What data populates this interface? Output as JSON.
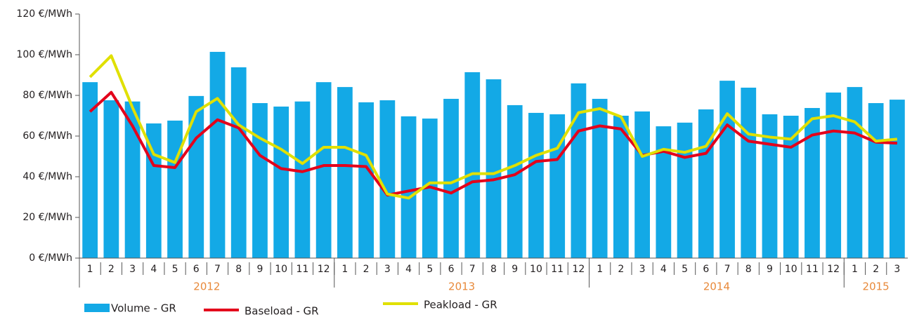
{
  "chart_data": {
    "type": "bar-line",
    "categories": [
      "1",
      "2",
      "3",
      "4",
      "5",
      "6",
      "7",
      "8",
      "9",
      "10",
      "11",
      "12",
      "1",
      "2",
      "3",
      "4",
      "5",
      "6",
      "7",
      "8",
      "9",
      "10",
      "11",
      "12",
      "1",
      "2",
      "3",
      "4",
      "5",
      "6",
      "7",
      "8",
      "9",
      "10",
      "11",
      "12",
      "1",
      "2",
      "3"
    ],
    "years": [
      "2012",
      "2013",
      "2014",
      "2015"
    ],
    "series": [
      {
        "name": "Volume - GR",
        "color": "#13a9e6",
        "kind": "bar",
        "values": [
          86.5,
          77.6,
          77,
          66.2,
          67.6,
          79.7,
          101.4,
          93.8,
          76.2,
          74.5,
          77,
          86.5,
          84.1,
          76.6,
          77.6,
          69.7,
          68.6,
          78.3,
          91.4,
          87.9,
          75.2,
          71.4,
          70.7,
          85.9,
          78.3,
          70,
          72.1,
          64.8,
          66.6,
          73.1,
          87.2,
          83.8,
          70.7,
          70,
          73.8,
          81.4,
          84.1,
          76.2,
          77.9
        ]
      },
      {
        "name": "Baseload - GR",
        "color": "#e3001b",
        "kind": "line",
        "values": [
          72,
          81.5,
          65,
          45.5,
          44.5,
          59,
          68,
          64,
          50.5,
          44,
          42.5,
          45.5,
          45.5,
          45,
          31,
          33,
          35,
          32,
          37.5,
          38.5,
          41,
          47.5,
          48.5,
          62.5,
          65,
          63.5,
          50.5,
          52.5,
          49.5,
          51.5,
          65.5,
          57.5,
          56,
          54.5,
          60.5,
          62.5,
          61.5,
          57,
          56.5
        ]
      },
      {
        "name": "Peakload - GR",
        "color": "#e0e000",
        "kind": "line",
        "values": [
          89,
          99.5,
          74,
          51,
          47,
          72,
          78.5,
          65.5,
          59,
          53.5,
          46.5,
          54.5,
          54.5,
          50.5,
          31.5,
          29.5,
          37,
          37,
          41.5,
          41.5,
          45.5,
          50.5,
          54,
          71.5,
          73.5,
          69.5,
          50,
          53.5,
          52,
          55,
          71,
          61,
          59.5,
          58.5,
          68.5,
          70,
          67,
          57.5,
          58.5
        ]
      }
    ],
    "ylim": [
      0,
      120
    ],
    "yticks": [
      {
        "value": 0,
        "label": "0 €/MWh"
      },
      {
        "value": 20,
        "label": "20 €/MWh"
      },
      {
        "value": 40,
        "label": "40 €/MWh"
      },
      {
        "value": 60,
        "label": "60 €/MWh"
      },
      {
        "value": 80,
        "label": "80 €/MWh"
      },
      {
        "value": 100,
        "label": "100 €/MWh"
      },
      {
        "value": 120,
        "label": "120 €/MWh"
      }
    ],
    "legend": "bottom"
  }
}
